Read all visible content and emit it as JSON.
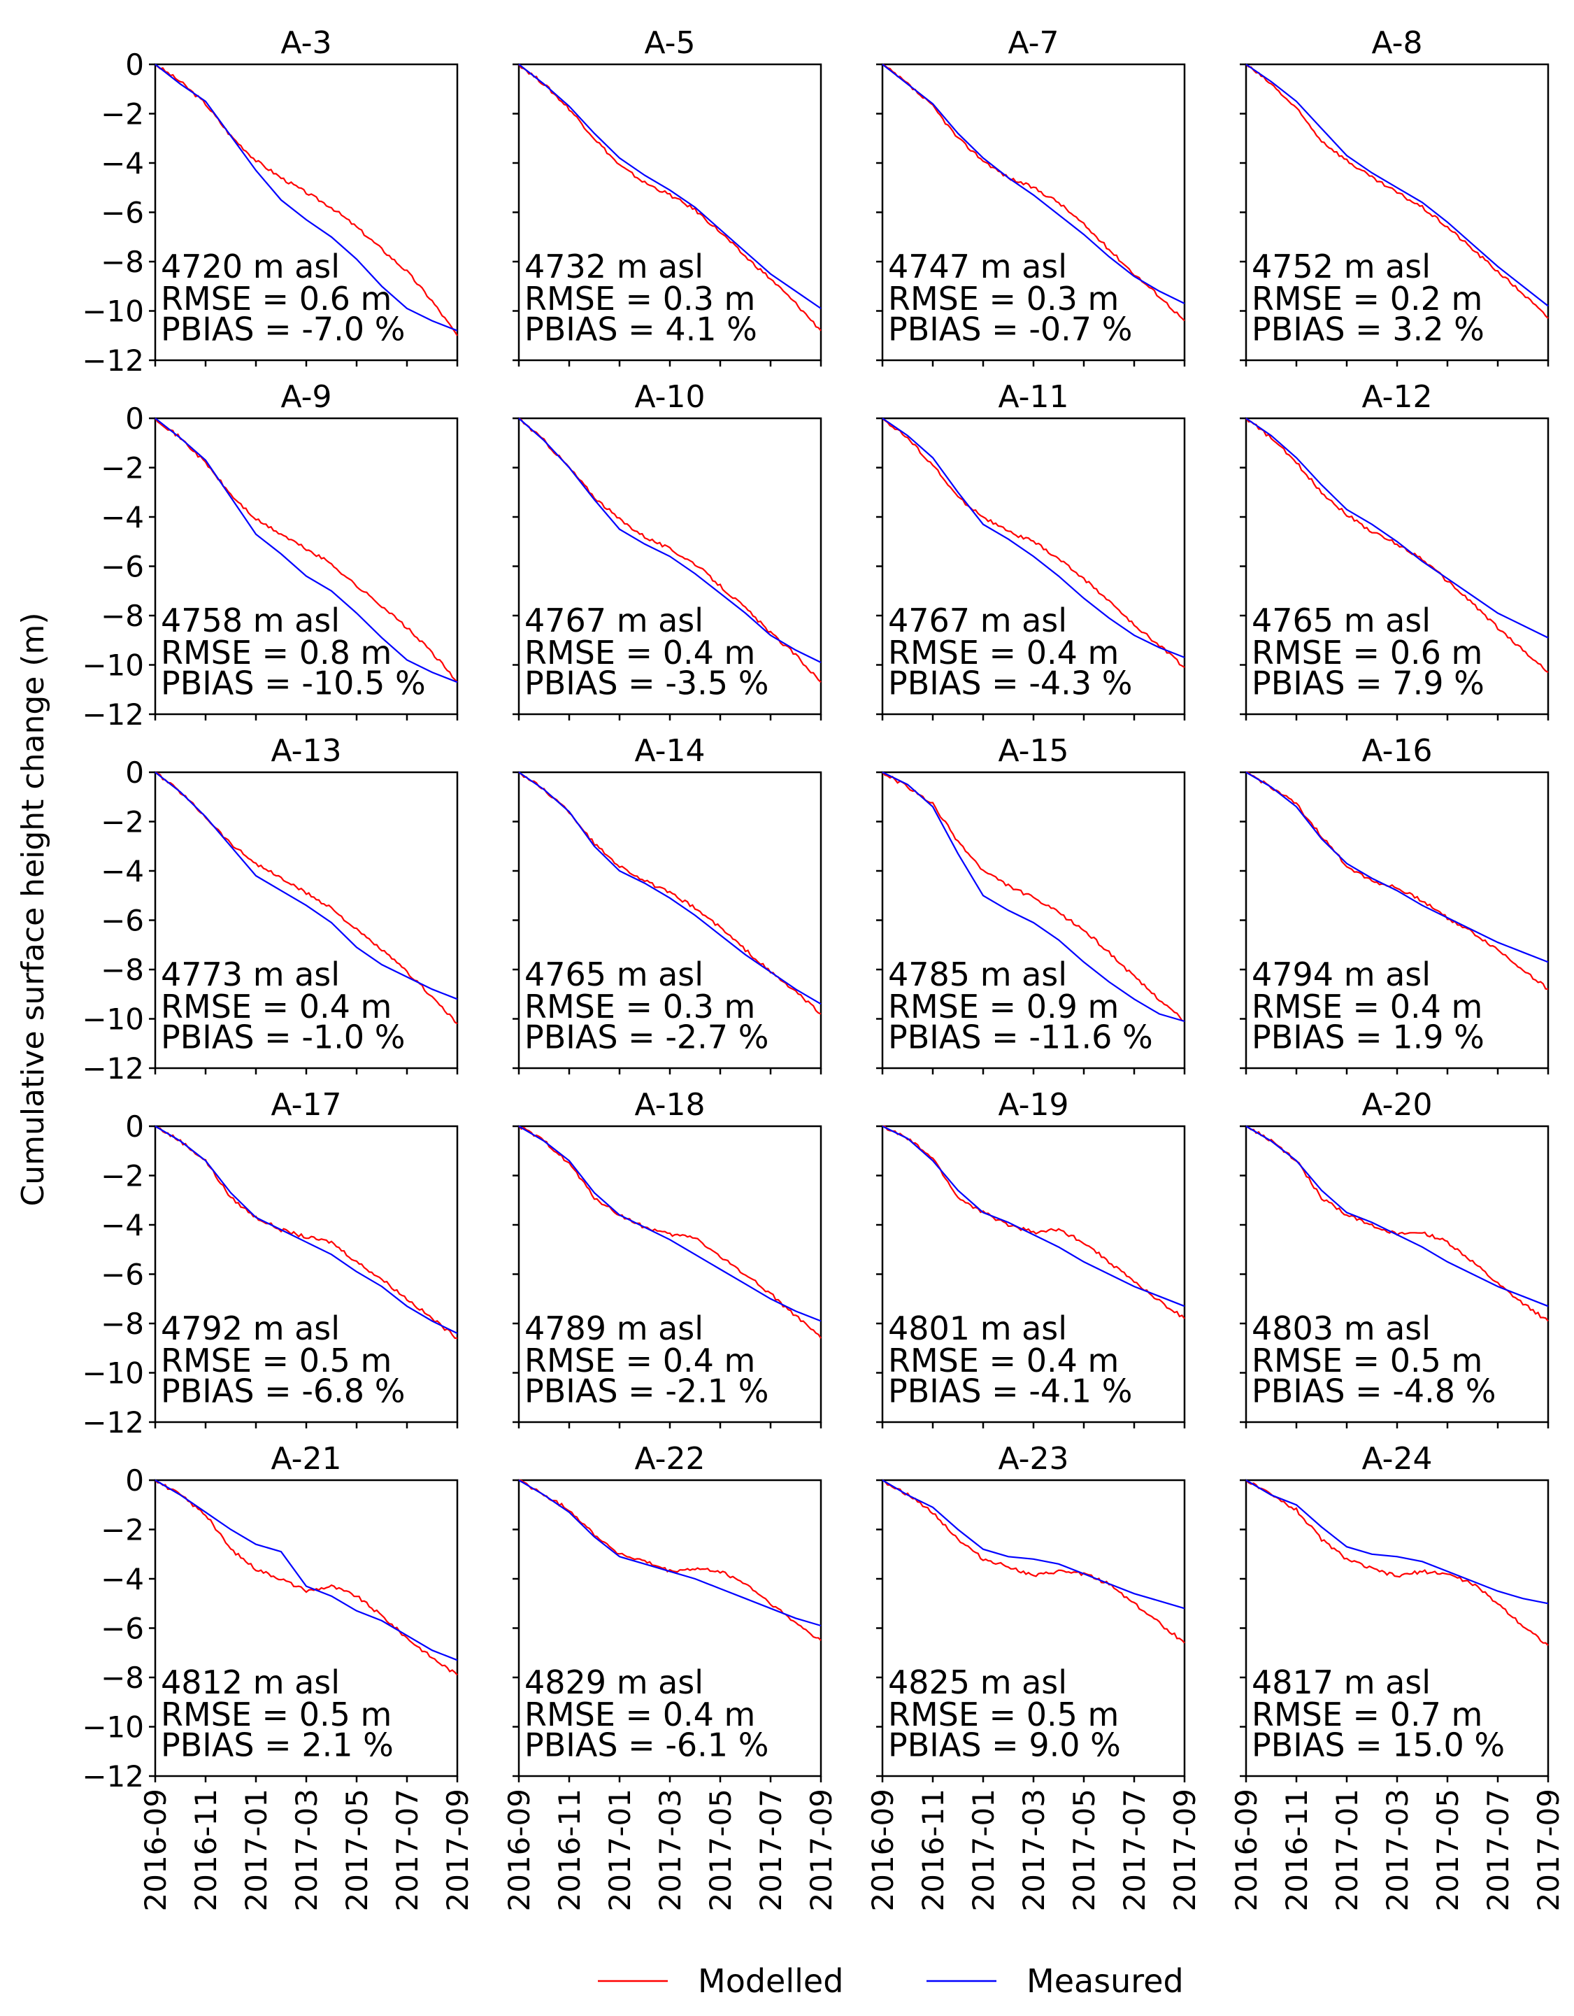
{
  "chart_data": {
    "type": "line",
    "ylabel": "Cumulative surface height change (m)",
    "ylim": [
      -12,
      0
    ],
    "yticks": [
      "0",
      "−2",
      "−4",
      "−6",
      "−8",
      "−10",
      "−12"
    ],
    "xlim": [
      "2016-09",
      "2017-09"
    ],
    "xticks": [
      "2016-09",
      "2016-11",
      "2017-01",
      "2017-03",
      "2017-05",
      "2017-07",
      "2017-09"
    ],
    "legend": {
      "placement": "bottom-center",
      "entries": [
        {
          "label": "Modelled",
          "color": "#ff0000"
        },
        {
          "label": "Measured",
          "color": "#0000ff"
        }
      ]
    },
    "x": [
      "2016-09",
      "2016-10",
      "2016-11",
      "2016-12",
      "2017-01",
      "2017-02",
      "2017-03",
      "2017-04",
      "2017-05",
      "2017-06",
      "2017-07",
      "2017-08",
      "2017-09"
    ],
    "panels": [
      {
        "title": "A-3",
        "elevation": "4720 m asl",
        "rmse": "RMSE = 0.6 m",
        "pbias": "PBIAS = -7.0 %",
        "series": [
          {
            "name": "Modelled",
            "values": [
              0,
              -0.7,
              -1.6,
              -2.9,
              -3.9,
              -4.6,
              -5.2,
              -5.8,
              -6.6,
              -7.5,
              -8.4,
              -9.6,
              -11.0
            ]
          },
          {
            "name": "Measured",
            "values": [
              0,
              -0.8,
              -1.5,
              -2.9,
              -4.3,
              -5.5,
              -6.3,
              -7.0,
              -7.9,
              -9.0,
              -9.9,
              -10.4,
              -10.8
            ]
          }
        ]
      },
      {
        "title": "A-5",
        "elevation": "4732 m asl",
        "rmse": "RMSE = 0.3 m",
        "pbias": "PBIAS = 4.1 %",
        "series": [
          {
            "name": "Modelled",
            "values": [
              0,
              -0.8,
              -1.8,
              -3.0,
              -4.1,
              -4.8,
              -5.3,
              -5.9,
              -6.8,
              -7.8,
              -8.7,
              -9.7,
              -10.8
            ]
          },
          {
            "name": "Measured",
            "values": [
              0,
              -0.8,
              -1.7,
              -2.8,
              -3.8,
              -4.5,
              -5.1,
              -5.8,
              -6.7,
              -7.6,
              -8.5,
              -9.2,
              -9.9
            ]
          }
        ]
      },
      {
        "title": "A-7",
        "elevation": "4747 m asl",
        "rmse": "RMSE = 0.3 m",
        "pbias": "PBIAS = -0.7 %",
        "series": [
          {
            "name": "Modelled",
            "values": [
              0,
              -0.8,
              -1.7,
              -3.0,
              -3.9,
              -4.6,
              -5.0,
              -5.6,
              -6.5,
              -7.5,
              -8.5,
              -9.4,
              -10.4
            ]
          },
          {
            "name": "Measured",
            "values": [
              0,
              -0.8,
              -1.6,
              -2.8,
              -3.8,
              -4.6,
              -5.3,
              -6.1,
              -6.9,
              -7.8,
              -8.6,
              -9.2,
              -9.7
            ]
          }
        ]
      },
      {
        "title": "A-8",
        "elevation": "4752 m asl",
        "rmse": "RMSE = 0.2 m",
        "pbias": "PBIAS = 3.2 %",
        "series": [
          {
            "name": "Modelled",
            "values": [
              0,
              -0.8,
              -1.8,
              -3.1,
              -3.9,
              -4.6,
              -5.2,
              -5.8,
              -6.6,
              -7.5,
              -8.4,
              -9.3,
              -10.3
            ]
          },
          {
            "name": "Measured",
            "values": [
              0,
              -0.7,
              -1.5,
              -2.6,
              -3.7,
              -4.4,
              -5.0,
              -5.6,
              -6.4,
              -7.3,
              -8.2,
              -9.0,
              -9.8
            ]
          }
        ]
      },
      {
        "title": "A-9",
        "elevation": "4758 m asl",
        "rmse": "RMSE = 0.8 m",
        "pbias": "PBIAS = -10.5 %",
        "series": [
          {
            "name": "Modelled",
            "values": [
              0,
              -0.8,
              -1.8,
              -3.1,
              -4.1,
              -4.7,
              -5.3,
              -5.9,
              -6.8,
              -7.6,
              -8.5,
              -9.5,
              -10.7
            ]
          },
          {
            "name": "Measured",
            "values": [
              0,
              -0.8,
              -1.7,
              -3.2,
              -4.7,
              -5.5,
              -6.4,
              -7.0,
              -7.9,
              -8.9,
              -9.8,
              -10.3,
              -10.7
            ]
          }
        ]
      },
      {
        "title": "A-10",
        "elevation": "4767 m asl",
        "rmse": "RMSE = 0.4 m",
        "pbias": "PBIAS = -3.5 %",
        "series": [
          {
            "name": "Modelled",
            "values": [
              0,
              -0.9,
              -2.0,
              -3.2,
              -4.1,
              -4.8,
              -5.3,
              -5.9,
              -6.8,
              -7.7,
              -8.7,
              -9.6,
              -10.7
            ]
          },
          {
            "name": "Measured",
            "values": [
              0,
              -0.9,
              -2.0,
              -3.3,
              -4.5,
              -5.1,
              -5.6,
              -6.3,
              -7.1,
              -7.9,
              -8.8,
              -9.4,
              -9.9
            ]
          }
        ]
      },
      {
        "title": "A-11",
        "elevation": "4767 m asl",
        "rmse": "RMSE = 0.4 m",
        "pbias": "PBIAS = -4.3 %",
        "series": [
          {
            "name": "Modelled",
            "values": [
              0,
              -0.8,
              -1.9,
              -3.2,
              -4.0,
              -4.6,
              -5.0,
              -5.7,
              -6.5,
              -7.4,
              -8.4,
              -9.2,
              -10.1
            ]
          },
          {
            "name": "Measured",
            "values": [
              0,
              -0.7,
              -1.6,
              -3.0,
              -4.3,
              -4.9,
              -5.6,
              -6.4,
              -7.3,
              -8.1,
              -8.8,
              -9.3,
              -9.7
            ]
          }
        ]
      },
      {
        "title": "A-12",
        "elevation": "4765 m asl",
        "rmse": "RMSE = 0.6 m",
        "pbias": "PBIAS = 7.9 %",
        "series": [
          {
            "name": "Modelled",
            "values": [
              0,
              -0.8,
              -1.8,
              -3.0,
              -3.9,
              -4.6,
              -5.1,
              -5.7,
              -6.6,
              -7.5,
              -8.5,
              -9.4,
              -10.3
            ]
          },
          {
            "name": "Measured",
            "values": [
              0,
              -0.7,
              -1.6,
              -2.7,
              -3.7,
              -4.3,
              -5.0,
              -5.8,
              -6.5,
              -7.2,
              -7.9,
              -8.4,
              -8.9
            ]
          }
        ]
      },
      {
        "title": "A-13",
        "elevation": "4773 m asl",
        "rmse": "RMSE = 0.4 m",
        "pbias": "PBIAS = -1.0 %",
        "series": [
          {
            "name": "Modelled",
            "values": [
              0,
              -0.8,
              -1.8,
              -2.9,
              -3.7,
              -4.3,
              -4.9,
              -5.5,
              -6.4,
              -7.2,
              -8.1,
              -9.1,
              -10.2
            ]
          },
          {
            "name": "Measured",
            "values": [
              0,
              -0.8,
              -1.8,
              -3.0,
              -4.2,
              -4.8,
              -5.4,
              -6.1,
              -7.1,
              -7.8,
              -8.3,
              -8.8,
              -9.2
            ]
          }
        ]
      },
      {
        "title": "A-14",
        "elevation": "4765 m asl",
        "rmse": "RMSE = 0.3 m",
        "pbias": "PBIAS = -2.7 %",
        "series": [
          {
            "name": "Modelled",
            "values": [
              0,
              -0.7,
              -1.6,
              -2.9,
              -3.8,
              -4.4,
              -4.9,
              -5.5,
              -6.3,
              -7.2,
              -8.1,
              -8.9,
              -9.8
            ]
          },
          {
            "name": "Measured",
            "values": [
              0,
              -0.7,
              -1.6,
              -3.0,
              -4.0,
              -4.5,
              -5.1,
              -5.8,
              -6.6,
              -7.4,
              -8.1,
              -8.8,
              -9.4
            ]
          }
        ]
      },
      {
        "title": "A-15",
        "elevation": "4785 m asl",
        "rmse": "RMSE = 0.9 m",
        "pbias": "PBIAS = -11.6 %",
        "series": [
          {
            "name": "Modelled",
            "values": [
              0,
              -0.6,
              -1.3,
              -2.8,
              -4.0,
              -4.6,
              -5.1,
              -5.7,
              -6.4,
              -7.3,
              -8.3,
              -9.2,
              -10.1
            ]
          },
          {
            "name": "Measured",
            "values": [
              0,
              -0.5,
              -1.4,
              -3.3,
              -5.0,
              -5.6,
              -6.1,
              -6.8,
              -7.7,
              -8.5,
              -9.2,
              -9.8,
              -10.1
            ]
          }
        ]
      },
      {
        "title": "A-16",
        "elevation": "4794 m asl",
        "rmse": "RMSE = 0.4 m",
        "pbias": "PBIAS = 1.9 %",
        "series": [
          {
            "name": "Modelled",
            "values": [
              0,
              -0.6,
              -1.3,
              -2.6,
              -3.8,
              -4.4,
              -4.7,
              -5.2,
              -5.9,
              -6.5,
              -7.2,
              -8.0,
              -8.8
            ]
          },
          {
            "name": "Measured",
            "values": [
              0,
              -0.6,
              -1.4,
              -2.7,
              -3.7,
              -4.3,
              -4.8,
              -5.4,
              -5.9,
              -6.4,
              -6.9,
              -7.3,
              -7.7
            ]
          }
        ]
      },
      {
        "title": "A-17",
        "elevation": "4792 m asl",
        "rmse": "RMSE = 0.5 m",
        "pbias": "PBIAS = -6.8 %",
        "series": [
          {
            "name": "Modelled",
            "values": [
              0,
              -0.6,
              -1.4,
              -2.9,
              -3.7,
              -4.2,
              -4.5,
              -4.7,
              -5.5,
              -6.2,
              -7.0,
              -7.8,
              -8.6
            ]
          },
          {
            "name": "Measured",
            "values": [
              0,
              -0.6,
              -1.4,
              -2.7,
              -3.7,
              -4.2,
              -4.7,
              -5.2,
              -5.9,
              -6.5,
              -7.3,
              -7.9,
              -8.4
            ]
          }
        ]
      },
      {
        "title": "A-18",
        "elevation": "4789 m asl",
        "rmse": "RMSE = 0.4 m",
        "pbias": "PBIAS = -2.1 %",
        "series": [
          {
            "name": "Modelled",
            "values": [
              0,
              -0.6,
              -1.5,
              -2.9,
              -3.6,
              -4.1,
              -4.4,
              -4.5,
              -5.3,
              -6.0,
              -6.8,
              -7.7,
              -8.6
            ]
          },
          {
            "name": "Measured",
            "values": [
              0,
              -0.6,
              -1.4,
              -2.7,
              -3.6,
              -4.1,
              -4.6,
              -5.2,
              -5.8,
              -6.4,
              -7.0,
              -7.5,
              -7.9
            ]
          }
        ]
      },
      {
        "title": "A-19",
        "elevation": "4801 m asl",
        "rmse": "RMSE = 0.4 m",
        "pbias": "PBIAS = -4.1 %",
        "series": [
          {
            "name": "Modelled",
            "values": [
              0,
              -0.5,
              -1.3,
              -2.9,
              -3.5,
              -4.0,
              -4.3,
              -4.2,
              -4.7,
              -5.5,
              -6.3,
              -7.1,
              -7.8
            ]
          },
          {
            "name": "Measured",
            "values": [
              0,
              -0.5,
              -1.4,
              -2.6,
              -3.5,
              -3.9,
              -4.4,
              -4.9,
              -5.5,
              -6.0,
              -6.5,
              -6.9,
              -7.3
            ]
          }
        ]
      },
      {
        "title": "A-20",
        "elevation": "4803 m asl",
        "rmse": "RMSE = 0.5 m",
        "pbias": "PBIAS = -4.8 %",
        "series": [
          {
            "name": "Modelled",
            "values": [
              0,
              -0.6,
              -1.4,
              -2.9,
              -3.6,
              -4.0,
              -4.4,
              -4.3,
              -4.7,
              -5.5,
              -6.4,
              -7.2,
              -7.9
            ]
          },
          {
            "name": "Measured",
            "values": [
              0,
              -0.6,
              -1.4,
              -2.6,
              -3.5,
              -3.9,
              -4.4,
              -4.9,
              -5.5,
              -6.0,
              -6.5,
              -6.9,
              -7.3
            ]
          }
        ]
      },
      {
        "title": "A-21",
        "elevation": "4812 m asl",
        "rmse": "RMSE = 0.5 m",
        "pbias": "PBIAS = 2.1 %",
        "series": [
          {
            "name": "Modelled",
            "values": [
              0,
              -0.6,
              -1.4,
              -2.8,
              -3.6,
              -4.0,
              -4.5,
              -4.3,
              -4.7,
              -5.5,
              -6.4,
              -7.2,
              -7.9
            ]
          },
          {
            "name": "Measured",
            "values": [
              0,
              -0.6,
              -1.3,
              -2.0,
              -2.6,
              -2.9,
              -4.3,
              -4.7,
              -5.3,
              -5.7,
              -6.3,
              -6.9,
              -7.3
            ]
          }
        ]
      },
      {
        "title": "A-22",
        "elevation": "4829 m asl",
        "rmse": "RMSE = 0.4 m",
        "pbias": "PBIAS = -6.1 %",
        "series": [
          {
            "name": "Modelled",
            "values": [
              0,
              -0.6,
              -1.2,
              -2.2,
              -3.0,
              -3.3,
              -3.7,
              -3.6,
              -3.7,
              -4.2,
              -5.0,
              -5.8,
              -6.5
            ]
          },
          {
            "name": "Measured",
            "values": [
              0,
              -0.6,
              -1.3,
              -2.3,
              -3.1,
              -3.4,
              -3.7,
              -4.0,
              -4.4,
              -4.8,
              -5.2,
              -5.6,
              -5.9
            ]
          }
        ]
      },
      {
        "title": "A-23",
        "elevation": "4825 m asl",
        "rmse": "RMSE = 0.5 m",
        "pbias": "PBIAS = 9.0 %",
        "series": [
          {
            "name": "Modelled",
            "values": [
              0,
              -0.6,
              -1.3,
              -2.4,
              -3.2,
              -3.5,
              -3.9,
              -3.7,
              -3.8,
              -4.2,
              -5.0,
              -5.8,
              -6.6
            ]
          },
          {
            "name": "Measured",
            "values": [
              0,
              -0.6,
              -1.1,
              -2.0,
              -2.8,
              -3.1,
              -3.2,
              -3.4,
              -3.8,
              -4.2,
              -4.6,
              -4.9,
              -5.2
            ]
          }
        ]
      },
      {
        "title": "A-24",
        "elevation": "4817 m asl",
        "rmse": "RMSE = 0.7 m",
        "pbias": "PBIAS = 15.0 %",
        "series": [
          {
            "name": "Modelled",
            "values": [
              0,
              -0.6,
              -1.2,
              -2.4,
              -3.2,
              -3.6,
              -3.9,
              -3.7,
              -3.8,
              -4.2,
              -5.0,
              -5.9,
              -6.7
            ]
          },
          {
            "name": "Measured",
            "values": [
              0,
              -0.6,
              -1.0,
              -1.9,
              -2.7,
              -3.0,
              -3.1,
              -3.3,
              -3.7,
              -4.1,
              -4.5,
              -4.8,
              -5.0
            ]
          }
        ]
      }
    ]
  }
}
